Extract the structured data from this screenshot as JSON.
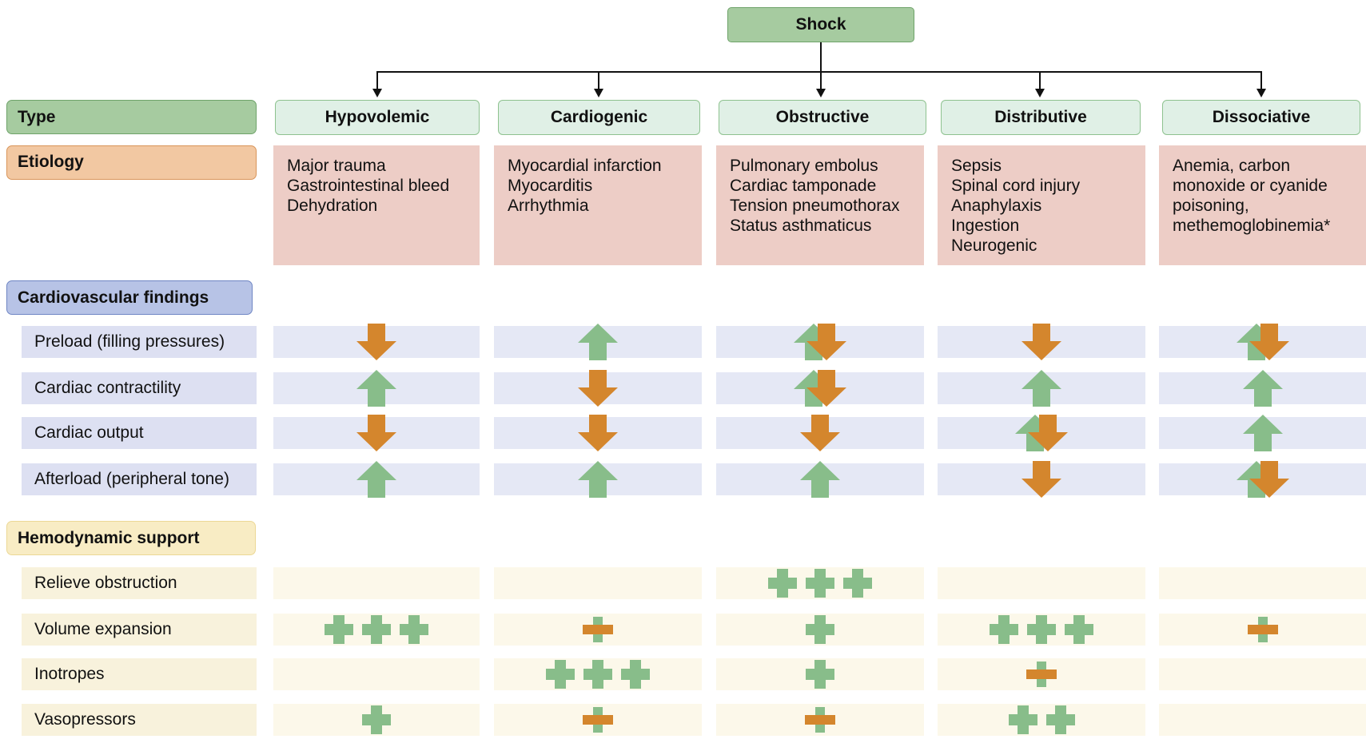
{
  "root": {
    "label": "Shock"
  },
  "side_labels": {
    "type": "Type",
    "etiology": "Etiology",
    "cardiovascular": "Cardiovascular findings",
    "hemodynamic": "Hemodynamic support"
  },
  "types": [
    {
      "label": "Hypovolemic",
      "etiology": [
        "Major trauma",
        "Gastrointestinal bleed",
        "Dehydration"
      ]
    },
    {
      "label": "Cardiogenic",
      "etiology": [
        "Myocardial infarction",
        "Myocarditis",
        "Arrhythmia"
      ]
    },
    {
      "label": "Obstructive",
      "etiology": [
        "Pulmonary embolus",
        "Cardiac tamponade",
        "Tension pneumothorax",
        "Status asthmaticus"
      ]
    },
    {
      "label": "Distributive",
      "etiology": [
        "Sepsis",
        "Spinal cord injury",
        "Anaphylaxis",
        "Ingestion",
        "Neurogenic"
      ]
    },
    {
      "label": "Dissociative",
      "etiology": [
        "Anemia, carbon",
        "monoxide or cyanide",
        "poisoning,",
        "methemoglobinemia*"
      ]
    }
  ],
  "cardiovascular_findings": [
    {
      "label": "Preload (filling pressures)",
      "values": [
        "down",
        "up",
        "up-down",
        "down",
        "up-down"
      ]
    },
    {
      "label": "Cardiac contractility",
      "values": [
        "up",
        "down",
        "up-down",
        "up",
        "up"
      ]
    },
    {
      "label": "Cardiac output",
      "values": [
        "down",
        "down",
        "down",
        "up-down",
        "up"
      ]
    },
    {
      "label": "Afterload (peripheral tone)",
      "values": [
        "up",
        "up",
        "up",
        "down",
        "up-down"
      ]
    }
  ],
  "hemodynamic_support": [
    {
      "label": "Relieve obstruction",
      "values": [
        0,
        0,
        3,
        0,
        0
      ]
    },
    {
      "label": "Volume expansion",
      "values": [
        3,
        "±",
        1,
        3,
        "±"
      ]
    },
    {
      "label": "Inotropes",
      "values": [
        0,
        3,
        1,
        "±",
        0
      ]
    },
    {
      "label": "Vasopressors",
      "values": [
        1,
        "±",
        "±",
        2,
        0
      ]
    }
  ],
  "legend_symbols": {
    "up": "green up arrow",
    "down": "orange down arrow",
    "up-down": "green up arrow overlapped by orange down arrow",
    "plus": "green plus",
    "plus_minus": "orange minus over green plus"
  },
  "colors": {
    "up_arrow": "#88bd8a",
    "down_arrow": "#d4862d",
    "plus": "#88bd8a",
    "minus": "#d4862d",
    "type_header": "#a6cba0",
    "etiology_header": "#f2c8a2",
    "cardio_header": "#b7c3e6",
    "hemo_header": "#f8ecc4",
    "etiology_cell": "#edcdc6"
  }
}
